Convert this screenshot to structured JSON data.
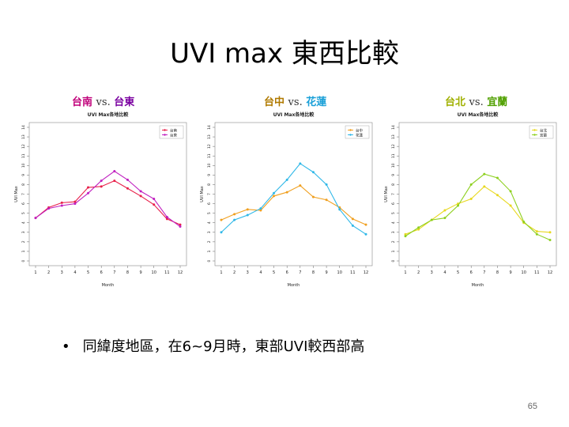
{
  "slide": {
    "title": "UVI max 東西比較",
    "bullet": "同緯度地區，在6~9月時，東部UVI較西部高",
    "page_number": "65"
  },
  "labels": [
    {
      "left": "台南",
      "vs": "vs.",
      "right": "台東",
      "left_color": "#c0007a",
      "right_color": "#7a00a0"
    },
    {
      "left": "台中",
      "vs": "vs.",
      "right": "花蓮",
      "left_color": "#b07a00",
      "right_color": "#1aa0d8"
    },
    {
      "left": "台北",
      "vs": "vs.",
      "right": "宜蘭",
      "left_color": "#a0b000",
      "right_color": "#50a000"
    }
  ],
  "chart_data": [
    {
      "type": "line",
      "title": "UVI Max各地比較",
      "xlabel": "Month",
      "ylabel": "UVI Max",
      "x": [
        1,
        2,
        3,
        4,
        5,
        6,
        7,
        8,
        9,
        10,
        11,
        12
      ],
      "xlim": [
        1,
        12
      ],
      "ylim": [
        0,
        14
      ],
      "yticks": [
        0,
        1,
        2,
        3,
        4,
        5,
        6,
        7,
        8,
        9,
        10,
        11,
        12,
        13,
        14
      ],
      "legend_position": "top-right",
      "series": [
        {
          "name": "台南",
          "color": "#e8204a",
          "values": [
            4.5,
            5.6,
            6.1,
            6.2,
            7.7,
            7.8,
            8.4,
            7.6,
            6.8,
            5.9,
            4.4,
            3.8
          ]
        },
        {
          "name": "台東",
          "color": "#c020c0",
          "values": [
            4.5,
            5.5,
            5.8,
            6.0,
            7.1,
            8.4,
            9.4,
            8.5,
            7.3,
            6.5,
            4.6,
            3.6
          ]
        }
      ]
    },
    {
      "type": "line",
      "title": "UVI Max各地比較",
      "xlabel": "Month",
      "ylabel": "UVI Max",
      "x": [
        1,
        2,
        3,
        4,
        5,
        6,
        7,
        8,
        9,
        10,
        11,
        12
      ],
      "xlim": [
        1,
        12
      ],
      "ylim": [
        0,
        14
      ],
      "yticks": [
        0,
        1,
        2,
        3,
        4,
        5,
        6,
        7,
        8,
        9,
        10,
        11,
        12,
        13,
        14
      ],
      "legend_position": "top-right",
      "series": [
        {
          "name": "台中",
          "color": "#f0a020",
          "values": [
            4.3,
            4.9,
            5.4,
            5.3,
            6.8,
            7.2,
            7.9,
            6.7,
            6.4,
            5.6,
            4.4,
            3.8
          ]
        },
        {
          "name": "花蓮",
          "color": "#30b8e8",
          "values": [
            3.0,
            4.3,
            4.8,
            5.5,
            7.1,
            8.5,
            10.2,
            9.3,
            8.0,
            5.4,
            3.7,
            2.8
          ]
        }
      ]
    },
    {
      "type": "line",
      "title": "UVI Max各地比較",
      "xlabel": "Month",
      "ylabel": "UVI Max",
      "x": [
        1,
        2,
        3,
        4,
        5,
        6,
        7,
        8,
        9,
        10,
        11,
        12
      ],
      "xlim": [
        1,
        12
      ],
      "ylim": [
        0,
        14
      ],
      "yticks": [
        0,
        1,
        2,
        3,
        4,
        5,
        6,
        7,
        8,
        9,
        10,
        11,
        12,
        13,
        14
      ],
      "legend_position": "top-right",
      "series": [
        {
          "name": "台北",
          "color": "#e8d820",
          "values": [
            2.8,
            3.3,
            4.3,
            5.3,
            6.0,
            6.5,
            7.8,
            6.9,
            5.8,
            4.0,
            3.1,
            3.0
          ]
        },
        {
          "name": "宜蘭",
          "color": "#8ed020",
          "values": [
            2.6,
            3.5,
            4.3,
            4.5,
            5.8,
            8.0,
            9.1,
            8.7,
            7.3,
            4.1,
            2.8,
            2.2
          ]
        }
      ]
    }
  ]
}
